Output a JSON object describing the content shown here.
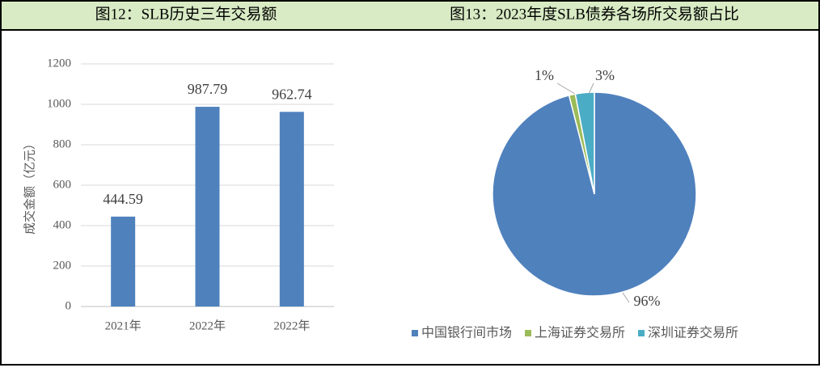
{
  "chart_data": [
    {
      "type": "bar",
      "title": "图12：SLB历史三年交易额",
      "categories": [
        "2021年",
        "2022年",
        "2022年"
      ],
      "values": [
        444.59,
        987.79,
        962.74
      ],
      "color": "#4f81bd",
      "y_label": "成交金额（亿元）",
      "ylim": [
        0,
        1200
      ],
      "yticks": [
        0,
        200,
        400,
        600,
        800,
        1000,
        1200
      ],
      "grid": true
    },
    {
      "type": "pie",
      "title": "图13：2023年度SLB债券各场所交易额占比",
      "categories": [
        "中国银行间市场",
        "上海证券交易所",
        "深圳证券交易所"
      ],
      "values": [
        96,
        1,
        3
      ],
      "value_labels": [
        "96%",
        "1%",
        "3%"
      ],
      "colors": [
        "#4f81bd",
        "#9bbb59",
        "#4bacc6"
      ],
      "legend": "bottom"
    }
  ]
}
